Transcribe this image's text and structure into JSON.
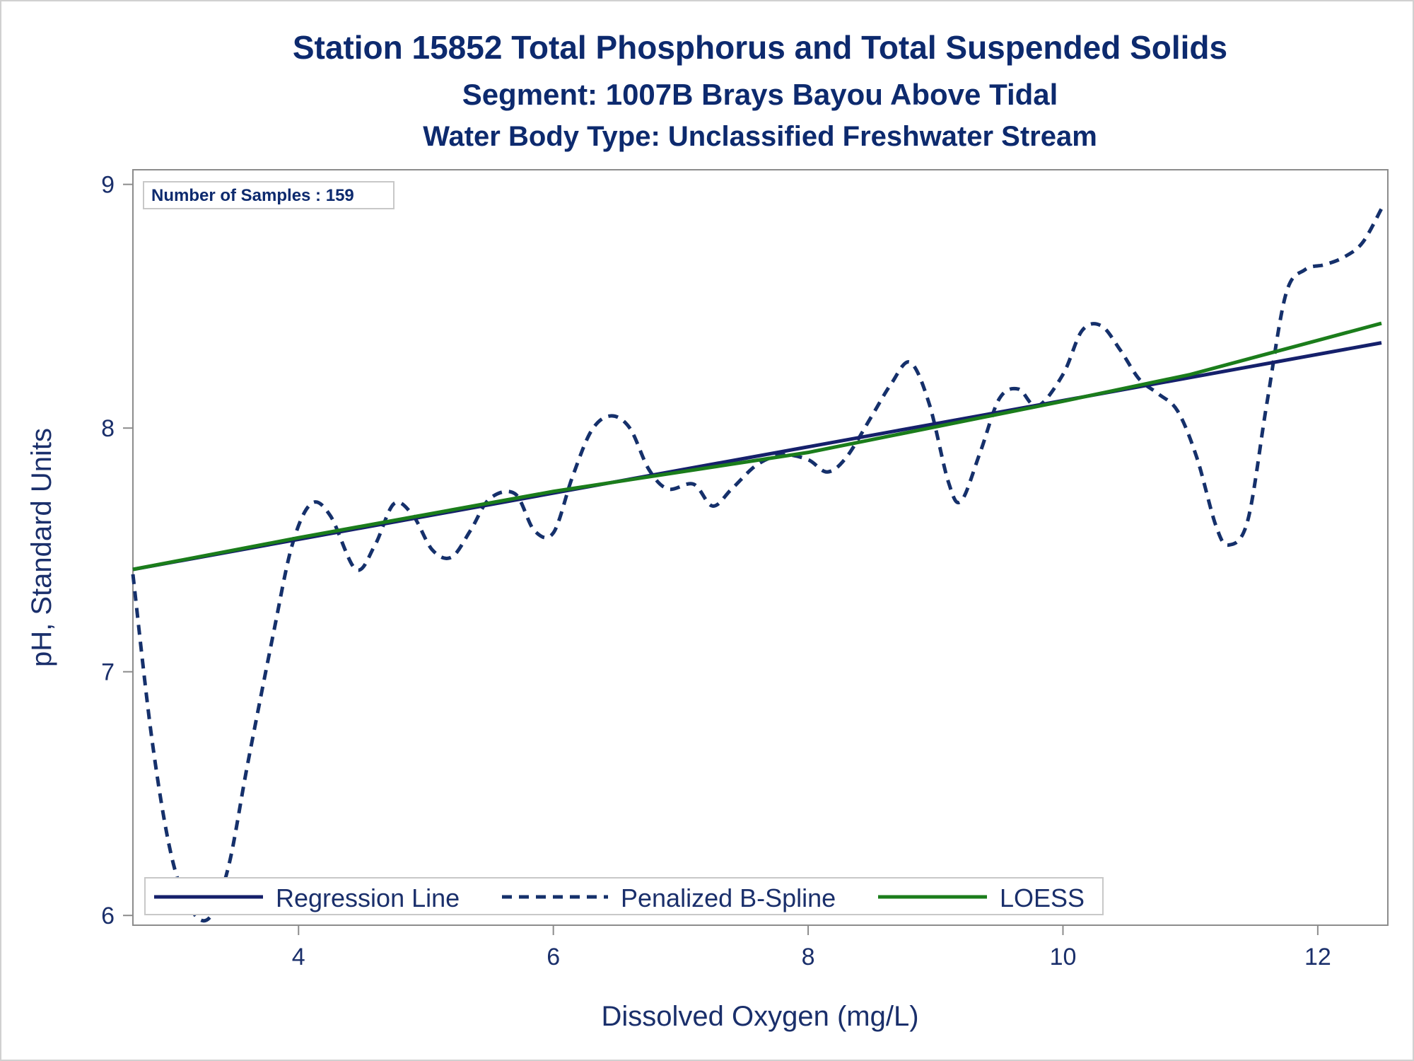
{
  "titles": {
    "line1": "Station 15852  Total Phosphorus and Total Suspended Solids",
    "line2": "Segment: 1007B  Brays Bayou Above Tidal",
    "line3": "Water Body Type: Unclassified Freshwater Stream"
  },
  "inset_note": "Number of Samples : 159",
  "colors": {
    "text": "#0d2a6e",
    "regression": "#15206b",
    "spline": "#15306b",
    "loess": "#1b7d1b",
    "frame": "#8c8c8c"
  },
  "chart_data": {
    "type": "line",
    "title": "Station 15852  Total Phosphorus and Total Suspended Solids",
    "xlabel": "Dissolved Oxygen (mg/L)",
    "ylabel": "pH, Standard Units",
    "xlim": [
      2.7,
      12.55
    ],
    "ylim": [
      5.96,
      9.06
    ],
    "xticks": [
      4,
      6,
      8,
      10,
      12
    ],
    "yticks": [
      6,
      7,
      8,
      9
    ],
    "grid": false,
    "legend_position": "bottom-left inside",
    "series": [
      {
        "name": "Regression Line",
        "style": "solid",
        "x": [
          2.7,
          12.5
        ],
        "y": [
          7.42,
          8.35
        ]
      },
      {
        "name": "Penalized B-Spline",
        "style": "dashed",
        "x": [
          2.7,
          2.85,
          3.0,
          3.15,
          3.3,
          3.45,
          3.6,
          3.8,
          3.95,
          4.1,
          4.25,
          4.45,
          4.6,
          4.75,
          4.9,
          5.05,
          5.2,
          5.35,
          5.5,
          5.7,
          5.85,
          6.0,
          6.15,
          6.3,
          6.45,
          6.6,
          6.75,
          6.9,
          7.1,
          7.25,
          7.4,
          7.6,
          7.8,
          8.0,
          8.15,
          8.3,
          8.5,
          8.65,
          8.8,
          8.95,
          9.1,
          9.2,
          9.35,
          9.5,
          9.65,
          9.8,
          10.0,
          10.15,
          10.3,
          10.45,
          10.6,
          10.75,
          10.9,
          11.05,
          11.2,
          11.3,
          11.45,
          11.6,
          11.75,
          11.9,
          12.05,
          12.2,
          12.35,
          12.5
        ],
        "y": [
          7.4,
          6.72,
          6.25,
          6.03,
          5.99,
          6.2,
          6.62,
          7.15,
          7.52,
          7.69,
          7.64,
          7.42,
          7.52,
          7.69,
          7.64,
          7.5,
          7.47,
          7.58,
          7.71,
          7.73,
          7.58,
          7.57,
          7.8,
          7.99,
          8.05,
          8.0,
          7.83,
          7.75,
          7.77,
          7.68,
          7.75,
          7.85,
          7.89,
          7.87,
          7.82,
          7.88,
          8.05,
          8.18,
          8.27,
          8.1,
          7.78,
          7.7,
          7.9,
          8.12,
          8.16,
          8.09,
          8.22,
          8.4,
          8.42,
          8.32,
          8.2,
          8.14,
          8.07,
          7.88,
          7.6,
          7.52,
          7.62,
          8.1,
          8.55,
          8.65,
          8.67,
          8.7,
          8.76,
          8.9
        ]
      },
      {
        "name": "LOESS",
        "style": "solid",
        "x": [
          2.7,
          4.0,
          6.0,
          8.0,
          10.0,
          11.0,
          12.0,
          12.5
        ],
        "y": [
          7.42,
          7.55,
          7.74,
          7.9,
          8.11,
          8.22,
          8.36,
          8.43
        ]
      }
    ]
  }
}
